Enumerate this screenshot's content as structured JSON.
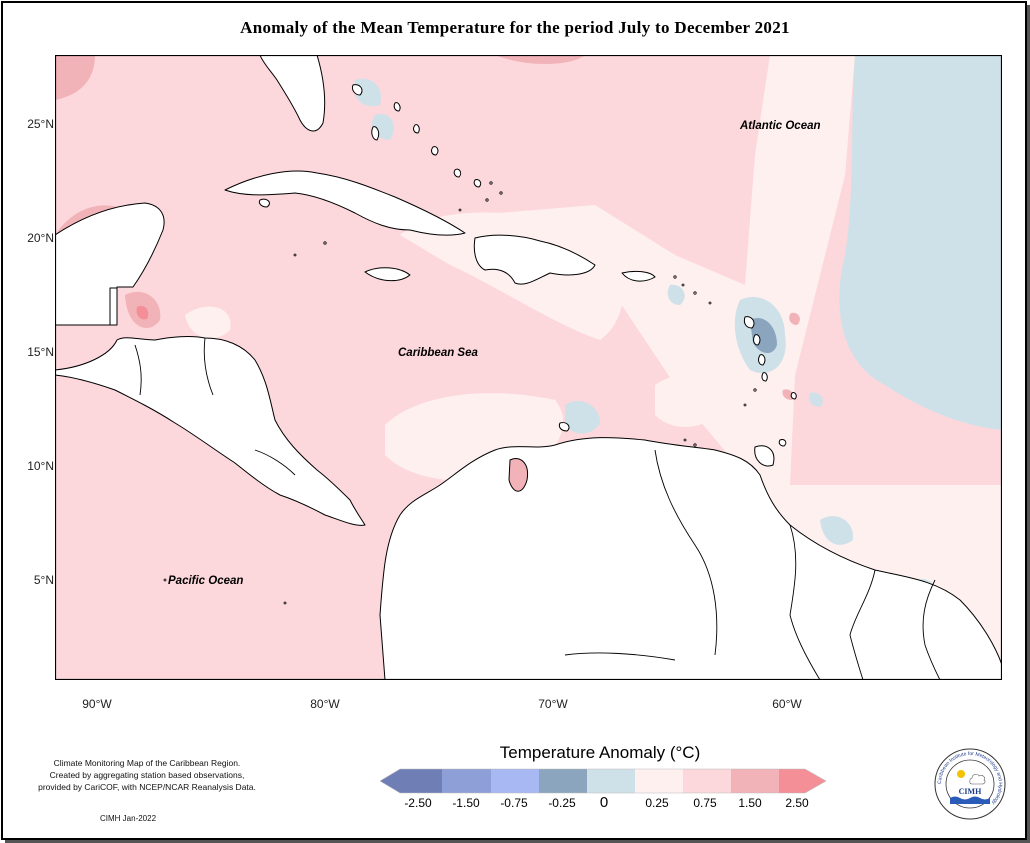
{
  "title": "Anomaly of the Mean Temperature for the period July to December 2021",
  "map": {
    "y_ticks": [
      "25°N",
      "20°N",
      "15°N",
      "10°N",
      "5°N"
    ],
    "x_ticks": [
      "90°W",
      "80°W",
      "70°W",
      "60°W"
    ],
    "labels": {
      "atlantic": "Atlantic Ocean",
      "caribbean": "Caribbean Sea",
      "pacific": "Pacific Ocean"
    }
  },
  "legend": {
    "title": "Temperature Anomaly (°C)",
    "colors": [
      "#6f7fb6",
      "#8e9ed6",
      "#a8b8f2",
      "#8aa5bd",
      "#cfe1e8",
      "#fff0f0",
      "#fcd8dc",
      "#f1b2b8",
      "#f58f97"
    ],
    "labels": [
      "-2.50",
      "-1.50",
      "-0.75",
      "-0.25",
      "0",
      "0.25",
      "0.75",
      "1.50",
      "2.50"
    ]
  },
  "credit": {
    "lines": [
      "Climate Monitoring Map of the Caribbean Region.",
      "Created by aggregating station based observations,",
      "provided by CariCOF, with NCEP/NCAR Reanalysis Data."
    ],
    "date": "CIMH Jan-2022"
  },
  "logo": {
    "name": "CIMH",
    "ring_text": "Caribbean Institute for Meteorology and Hydrology"
  },
  "colors": {
    "land": "#ffffff",
    "pink": "#fcd8dc",
    "light_pink": "#fff0f0",
    "blue": "#cfe1e8",
    "dark_blue": "#8aa5bd",
    "deep_pink": "#f1b2b8"
  }
}
